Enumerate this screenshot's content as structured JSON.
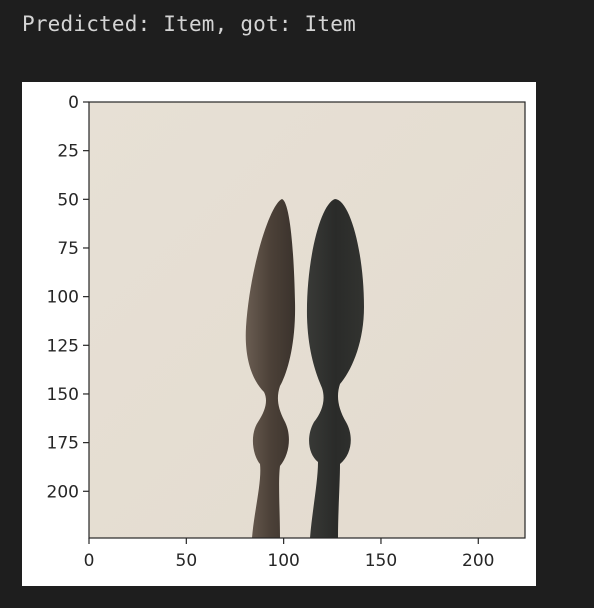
{
  "output": {
    "text": "Predicted: Item, got: Item"
  },
  "figure": {
    "image_description_icon": "sample-image-icon",
    "colors": {
      "background": "#e6dfd4",
      "spoon_left": "#4a4038",
      "spoon_right": "#2b2c2a",
      "axis": "#262626"
    }
  },
  "chart_data": {
    "type": "image",
    "x_ticks": [
      "0",
      "50",
      "100",
      "150",
      "200"
    ],
    "y_ticks": [
      "0",
      "25",
      "50",
      "75",
      "100",
      "125",
      "150",
      "175",
      "200"
    ],
    "xlim": [
      0,
      224
    ],
    "ylim": [
      224,
      0
    ]
  }
}
